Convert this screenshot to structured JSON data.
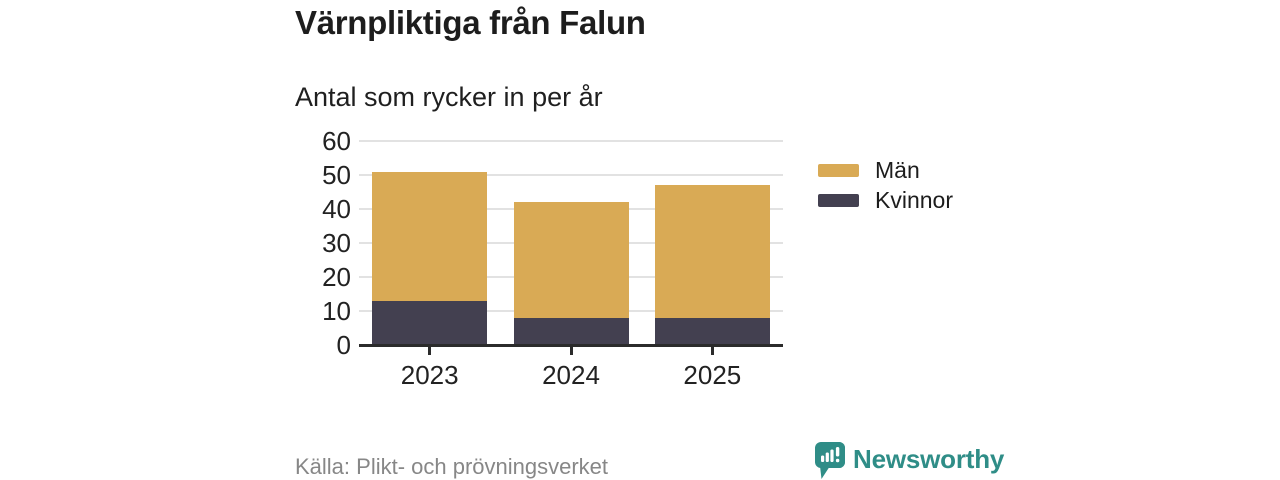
{
  "header": {
    "title": "Värnpliktiga från Falun",
    "subtitle": "Antal som rycker in per år"
  },
  "chart_data": {
    "type": "bar",
    "stacked": true,
    "title": "Värnpliktiga från Falun",
    "subtitle": "Antal som rycker in per år",
    "categories": [
      "2023",
      "2024",
      "2025"
    ],
    "series": [
      {
        "name": "Män",
        "color": "#d9aa55",
        "values": [
          38,
          34,
          39
        ]
      },
      {
        "name": "Kvinnor",
        "color": "#434050",
        "values": [
          13,
          8,
          8
        ]
      }
    ],
    "stack_order_bottom_to_top": [
      "Kvinnor",
      "Män"
    ],
    "totals": [
      51,
      42,
      47
    ],
    "xlabel": "",
    "ylabel": "",
    "ylim": [
      0,
      60
    ],
    "yticks": [
      0,
      10,
      20,
      30,
      40,
      50,
      60
    ],
    "grid": true,
    "grid_color": "#e2e2e2",
    "axis_color": "#2b2b2b",
    "tick_label_color": "#222222",
    "legend_position": "right"
  },
  "legend": {
    "items": [
      {
        "label": "Män",
        "color": "#d9aa55"
      },
      {
        "label": "Kvinnor",
        "color": "#434050"
      }
    ]
  },
  "footer": {
    "source": "Källa: Plikt- och prövningsverket"
  },
  "brand": {
    "name": "Newsworthy",
    "color": "#2f8d87",
    "icon": "newsworthy-speech-bubble-chart-icon"
  }
}
